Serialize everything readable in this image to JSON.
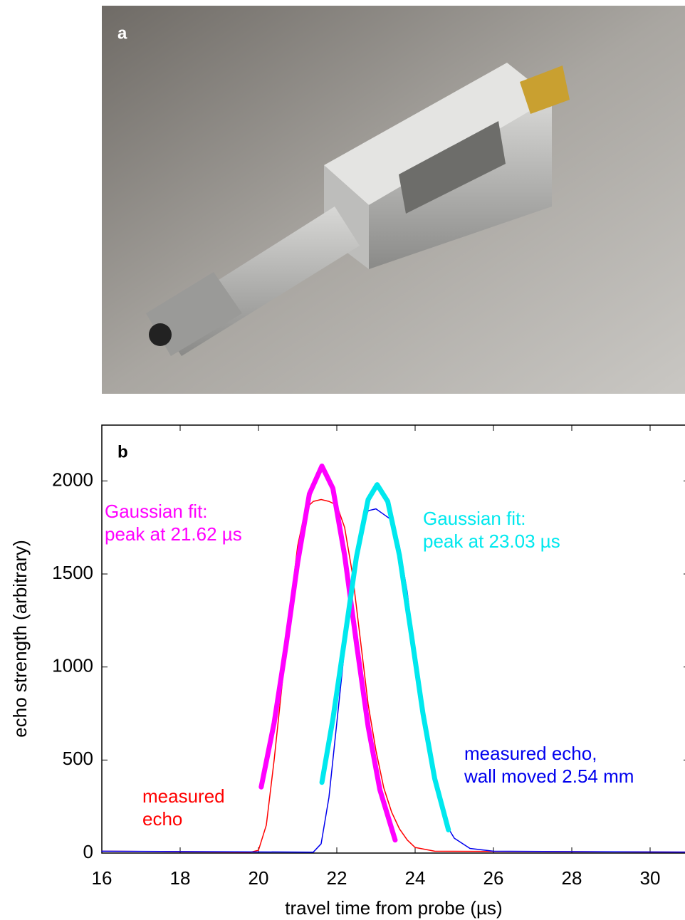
{
  "panel_a": {
    "label": "a"
  },
  "chart_data": {
    "type": "line",
    "panel_label": "b",
    "xlabel": "travel time from probe (µs)",
    "ylabel": "echo strength (arbitrary)",
    "xlim": [
      16,
      31
    ],
    "ylim": [
      0,
      2300
    ],
    "xticks": [
      16,
      18,
      20,
      22,
      24,
      26,
      28,
      30
    ],
    "yticks": [
      0,
      500,
      1000,
      1500,
      2000
    ],
    "series": [
      {
        "label": [
          "measured",
          "echo"
        ],
        "color": "#ff0000",
        "x": [
          16,
          19.8,
          20,
          20.2,
          20.4,
          20.6,
          20.8,
          21,
          21.2,
          21.4,
          21.6,
          21.8,
          22,
          22.2,
          22.4,
          22.6,
          22.8,
          23,
          23.2,
          23.4,
          23.6,
          23.8,
          24,
          24.5,
          31
        ],
        "values": [
          10,
          5,
          15,
          150,
          500,
          900,
          1300,
          1650,
          1850,
          1890,
          1900,
          1890,
          1870,
          1750,
          1500,
          1150,
          800,
          550,
          350,
          220,
          130,
          70,
          30,
          10,
          5
        ]
      },
      {
        "label": [
          "measured echo,",
          "wall moved 2.54 mm"
        ],
        "color": "#0000ee",
        "x": [
          16,
          21.4,
          21.6,
          21.8,
          22,
          22.2,
          22.4,
          22.6,
          22.8,
          23,
          23.2,
          23.4,
          23.6,
          23.8,
          24,
          24.2,
          24.4,
          24.6,
          24.8,
          25,
          25.4,
          26,
          31
        ],
        "values": [
          10,
          5,
          50,
          300,
          700,
          1100,
          1450,
          1700,
          1840,
          1850,
          1820,
          1790,
          1650,
          1400,
          1050,
          750,
          500,
          300,
          150,
          80,
          25,
          10,
          5
        ]
      },
      {
        "label": [
          "Gaussian fit:",
          "peak at 21.62 µs"
        ],
        "color": "#ff00ff",
        "x": [
          20.07,
          20.4,
          20.7,
          21,
          21.3,
          21.62,
          21.9,
          22.2,
          22.5,
          22.8,
          23.1,
          23.49
        ],
        "values": [
          355,
          700,
          1110,
          1560,
          1930,
          2080,
          1960,
          1600,
          1130,
          680,
          340,
          70
        ]
      },
      {
        "label": [
          "Gaussian fit:",
          "peak at 23.03 µs"
        ],
        "color": "#00e8ee",
        "x": [
          21.62,
          21.9,
          22.2,
          22.5,
          22.8,
          23.03,
          23.3,
          23.6,
          23.9,
          24.2,
          24.5,
          24.85
        ],
        "values": [
          380,
          720,
          1150,
          1590,
          1900,
          1980,
          1890,
          1600,
          1180,
          750,
          400,
          125
        ]
      }
    ]
  }
}
